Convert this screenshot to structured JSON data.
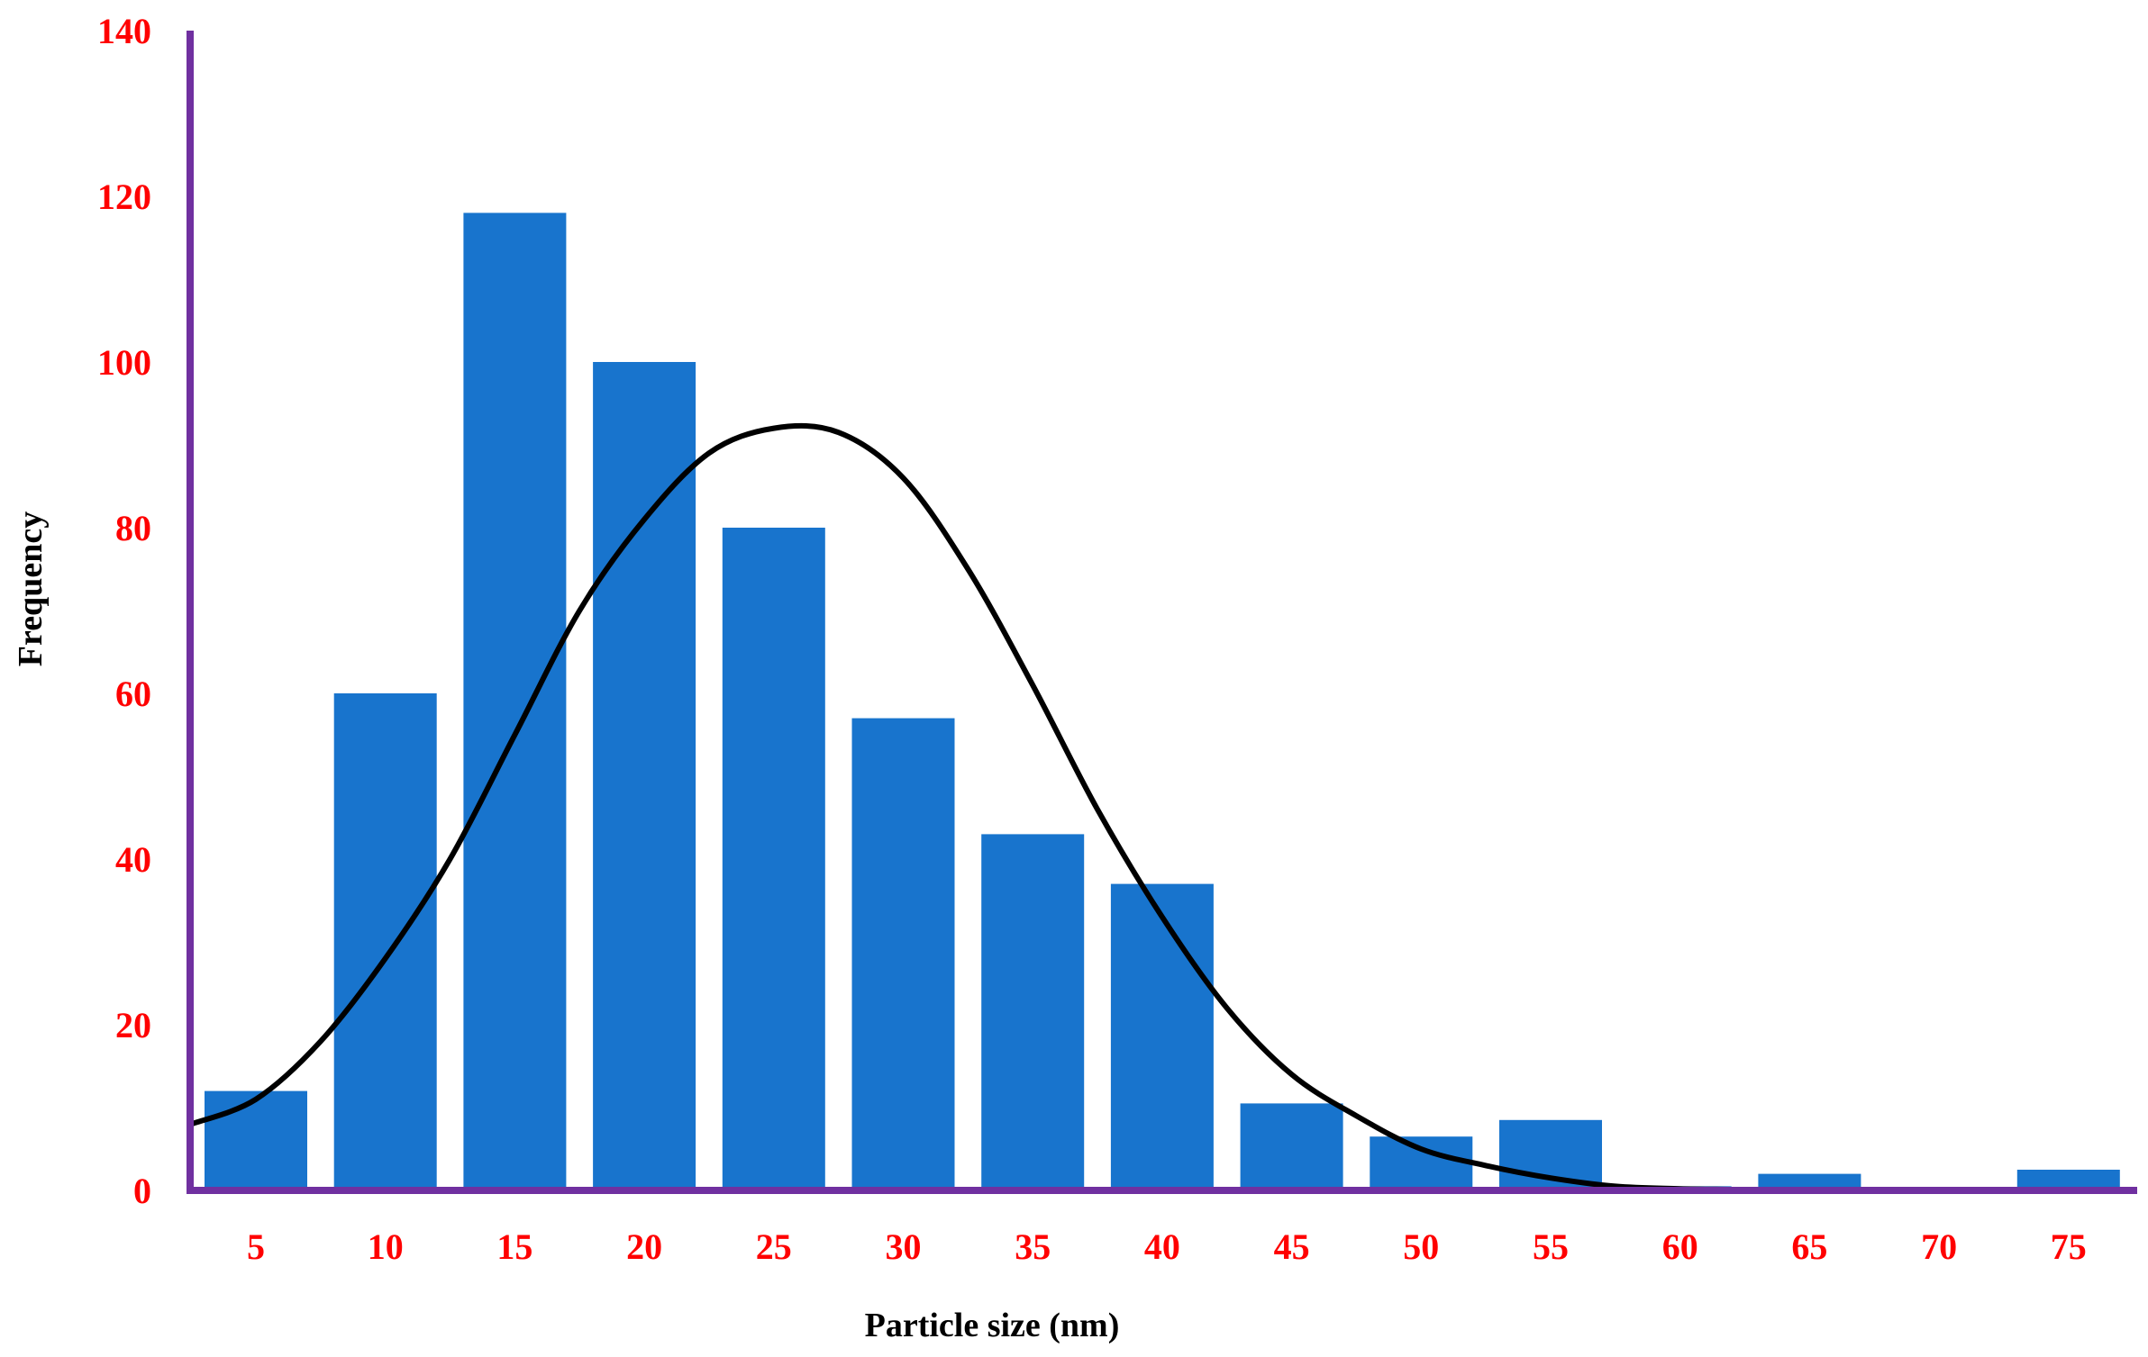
{
  "chart_data": {
    "type": "bar",
    "title": "",
    "xlabel": "Particle size (nm)",
    "ylabel": "Frequency",
    "categories": [
      "5",
      "10",
      "15",
      "20",
      "25",
      "30",
      "35",
      "40",
      "45",
      "50",
      "55",
      "60",
      "65",
      "70",
      "75"
    ],
    "values": [
      12,
      60,
      118,
      100,
      80,
      57,
      43,
      37,
      10.5,
      6.5,
      8.5,
      0.5,
      2,
      0,
      2.5
    ],
    "ylim": [
      0,
      140
    ],
    "yticks": [
      "0",
      "20",
      "40",
      "60",
      "80",
      "100",
      "120",
      "140"
    ],
    "fit_curve": {
      "type": "normal",
      "x": [
        2.5,
        5,
        7.5,
        10,
        12.5,
        15,
        17.5,
        20,
        22.5,
        25,
        27.5,
        30,
        32.5,
        35,
        37.5,
        40,
        42.5,
        45,
        47.5,
        50,
        52.5,
        55,
        57.5,
        60,
        62.5,
        63.5
      ],
      "y": [
        8,
        11,
        18,
        28,
        40,
        55,
        70,
        81,
        89,
        92,
        91.5,
        86,
        75,
        61,
        46,
        33,
        22,
        14,
        9,
        5,
        3,
        1.5,
        0.5,
        0.2,
        0.1,
        0
      ]
    },
    "grid": false,
    "legend": "none",
    "colors": {
      "bar": "#1874CD",
      "axis": "#7030A0",
      "tick_label": "#FF0000",
      "curve": "#000000",
      "axis_title": "#000000"
    }
  }
}
